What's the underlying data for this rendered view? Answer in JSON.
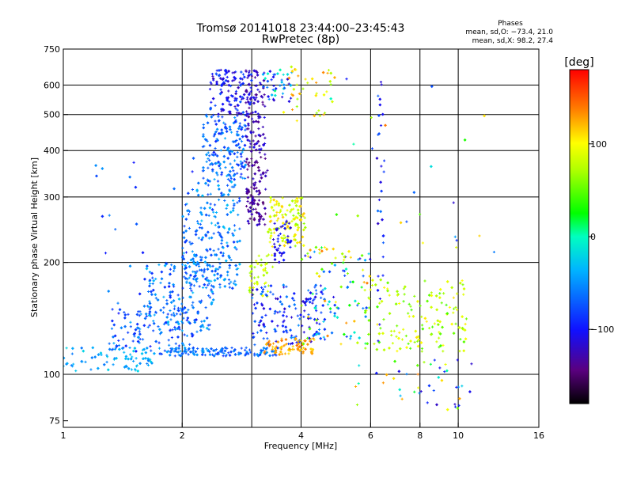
{
  "chart_data": {
    "type": "scatter",
    "title": "Tromsø 20141018 23:44:00–23:45:43",
    "subtitle": "RwPretec (8p)",
    "xlabel": "Frequency [MHz]",
    "ylabel": "Stationary phase Virtual Height [km]",
    "x_scale": "log",
    "y_scale": "log",
    "xlim": [
      1,
      16
    ],
    "ylim": [
      72,
      750
    ],
    "x_ticks": [
      1,
      2,
      4,
      6,
      8,
      10,
      16
    ],
    "x_tick_labels": [
      "1",
      "2",
      "4",
      "6",
      "8",
      "10",
      "16"
    ],
    "y_ticks": [
      75,
      100,
      200,
      300,
      400,
      500,
      600,
      750
    ],
    "y_tick_labels": [
      "75",
      "100",
      "200",
      "300",
      "400",
      "500",
      "600",
      "750"
    ],
    "x_grid": [
      2,
      3,
      4,
      6,
      8,
      10
    ],
    "y_grid": [
      100,
      200,
      300,
      400,
      500,
      600
    ],
    "stats": {
      "title": "Phases",
      "line1": "mean, sd,O: −73.4, 21.0",
      "line2": "mean, sd,X:  98.2, 27.4"
    },
    "colorbar": {
      "label": "[deg]",
      "range": [
        -180,
        180
      ],
      "ticks": [
        100,
        0,
        -100
      ],
      "tick_labels": [
        "100",
        "0",
        "−100"
      ],
      "colormap": "rainbow: black-purple-blue-cyan-green-yellow-orange-red"
    },
    "clusters": [
      {
        "xr": [
          2.35,
          3.0
        ],
        "yr": [
          500,
          660
        ],
        "n": 120,
        "ph": [
          -130,
          -70
        ]
      },
      {
        "xr": [
          2.25,
          2.9
        ],
        "yr": [
          330,
          500
        ],
        "n": 170,
        "ph": [
          -95,
          -40
        ]
      },
      {
        "xr": [
          2.0,
          2.8
        ],
        "yr": [
          170,
          330
        ],
        "n": 230,
        "ph": [
          -85,
          -30
        ]
      },
      {
        "xr": [
          1.6,
          2.4
        ],
        "yr": [
          130,
          200
        ],
        "n": 160,
        "ph": [
          -90,
          -30
        ]
      },
      {
        "xr": [
          1.3,
          2.2
        ],
        "yr": [
          115,
          150
        ],
        "n": 110,
        "ph": [
          -100,
          -40
        ]
      },
      {
        "xr": [
          1.0,
          1.7
        ],
        "yr": [
          102,
          118
        ],
        "n": 75,
        "ph": [
          -60,
          -20
        ]
      },
      {
        "xr": [
          1.75,
          3.5
        ],
        "yr": [
          112,
          118
        ],
        "n": 130,
        "ph": [
          -90,
          -40
        ]
      },
      {
        "xr": [
          2.9,
          3.25
        ],
        "yr": [
          400,
          660
        ],
        "n": 95,
        "ph": [
          -140,
          -105
        ]
      },
      {
        "xr": [
          2.9,
          3.3
        ],
        "yr": [
          250,
          400
        ],
        "n": 100,
        "ph": [
          -150,
          -115
        ]
      },
      {
        "xr": [
          3.2,
          3.8
        ],
        "yr": [
          540,
          660
        ],
        "n": 40,
        "ph": [
          -120,
          10
        ]
      },
      {
        "xr": [
          3.3,
          4.1
        ],
        "yr": [
          220,
          300
        ],
        "n": 120,
        "ph": [
          60,
          120
        ]
      },
      {
        "xr": [
          3.4,
          3.8
        ],
        "yr": [
          200,
          260
        ],
        "n": 40,
        "ph": [
          -120,
          -90
        ]
      },
      {
        "xr": [
          2.95,
          3.4
        ],
        "yr": [
          160,
          210
        ],
        "n": 40,
        "ph": [
          60,
          100
        ]
      },
      {
        "xr": [
          3.0,
          4.6
        ],
        "yr": [
          120,
          175
        ],
        "n": 140,
        "ph": [
          -120,
          -50
        ]
      },
      {
        "xr": [
          3.2,
          4.3
        ],
        "yr": [
          113,
          125
        ],
        "n": 70,
        "ph": [
          110,
          145
        ]
      },
      {
        "xr": [
          3.6,
          4.8
        ],
        "yr": [
          470,
          680
        ],
        "n": 40,
        "ph": [
          60,
          140
        ]
      },
      {
        "xr": [
          4.0,
          6.0
        ],
        "yr": [
          120,
          220
        ],
        "n": 110,
        "ph": [
          -120,
          140
        ]
      },
      {
        "xr": [
          5.8,
          10.5
        ],
        "yr": [
          115,
          180
        ],
        "n": 150,
        "ph": [
          40,
          110
        ]
      },
      {
        "xr": [
          5.5,
          11.0
        ],
        "yr": [
          80,
          110
        ],
        "n": 45,
        "ph": [
          -120,
          140
        ]
      },
      {
        "xr": [
          4.5,
          13.0
        ],
        "yr": [
          200,
          650
        ],
        "n": 25,
        "ph": [
          -120,
          140
        ]
      },
      {
        "xr": [
          1.2,
          2.3
        ],
        "yr": [
          150,
          400
        ],
        "n": 30,
        "ph": [
          -100,
          -40
        ]
      },
      {
        "xr": [
          6.2,
          6.5
        ],
        "yr": [
          110,
          650
        ],
        "n": 30,
        "ph": [
          -120,
          -60
        ]
      }
    ]
  }
}
